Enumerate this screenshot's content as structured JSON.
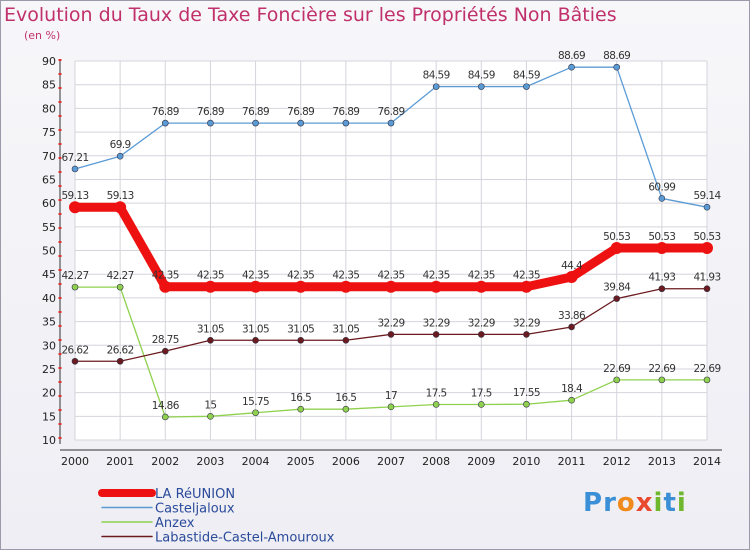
{
  "title": "Evolution du Taux de Taxe Foncière sur les Propriétés Non Bâties",
  "unit": "(en %)",
  "logo": {
    "text": "Proxiti",
    "letters": [
      "P",
      "r",
      "o",
      "x",
      "i",
      "t",
      "i"
    ],
    "colors": [
      "#3a8fd6",
      "#3a8fd6",
      "#f08a1c",
      "#e94a2f",
      "#6fb82e",
      "#3a8fd6",
      "#6fb82e"
    ]
  },
  "chart_data": {
    "type": "line",
    "x": [
      "2000",
      "2001",
      "2002",
      "2003",
      "2004",
      "2005",
      "2006",
      "2007",
      "2008",
      "2009",
      "2010",
      "2011",
      "2012",
      "2013",
      "2014"
    ],
    "ylim": [
      10,
      90
    ],
    "yticks": [
      10,
      15,
      20,
      25,
      30,
      35,
      40,
      45,
      50,
      55,
      60,
      65,
      70,
      75,
      80,
      85,
      90
    ],
    "grid": true,
    "legend_position": "bottom-left",
    "series": [
      {
        "name": "LA RéUNION",
        "color": "#ee1111",
        "width": 9,
        "marker": 6,
        "values": [
          59.13,
          59.13,
          42.35,
          42.35,
          42.35,
          42.35,
          42.35,
          42.35,
          42.35,
          42.35,
          42.35,
          44.4,
          50.53,
          50.53,
          50.53
        ],
        "labels": [
          "59.13",
          "59.13",
          "42.35",
          "42.35",
          "42.35",
          "42.35",
          "42.35",
          "42.35",
          "42.35",
          "42.35",
          "42.35",
          "44.4",
          "50.53",
          "50.53",
          "50.53"
        ]
      },
      {
        "name": "Casteljaloux",
        "color": "#5b9bd5",
        "width": 1.3,
        "marker": 3,
        "values": [
          67.21,
          69.9,
          76.89,
          76.89,
          76.89,
          76.89,
          76.89,
          76.89,
          84.59,
          84.59,
          84.59,
          88.69,
          88.69,
          60.99,
          59.14
        ],
        "labels": [
          "67.21",
          "69.9",
          "76.89",
          "76.89",
          "76.89",
          "76.89",
          "76.89",
          "76.89",
          "84.59",
          "84.59",
          "84.59",
          "88.69",
          "88.69",
          "60.99",
          "59.14"
        ]
      },
      {
        "name": "Anzex",
        "color": "#8fd14f",
        "width": 1.3,
        "marker": 3,
        "values": [
          42.27,
          42.27,
          14.86,
          15,
          15.75,
          16.5,
          16.5,
          17,
          17.5,
          17.5,
          17.55,
          18.4,
          22.69,
          22.69,
          22.69
        ],
        "labels": [
          "42.27",
          "42.27",
          "14.86",
          "15",
          "15.75",
          "16.5",
          "16.5",
          "17",
          "17.5",
          "17.5",
          "17.55",
          "18.4",
          "22.69",
          "22.69",
          "22.69"
        ]
      },
      {
        "name": "Labastide-Castel-Amouroux",
        "color": "#6b1a1f",
        "width": 1.3,
        "marker": 3,
        "values": [
          26.62,
          26.62,
          28.75,
          31.05,
          31.05,
          31.05,
          31.05,
          32.29,
          32.29,
          32.29,
          32.29,
          33.86,
          39.84,
          41.93,
          41.93
        ],
        "labels": [
          "26.62",
          "26.62",
          "28.75",
          "31.05",
          "31.05",
          "31.05",
          "31.05",
          "32.29",
          "32.29",
          "32.29",
          "32.29",
          "33.86",
          "39.84",
          "41.93",
          "41.93"
        ]
      }
    ]
  }
}
